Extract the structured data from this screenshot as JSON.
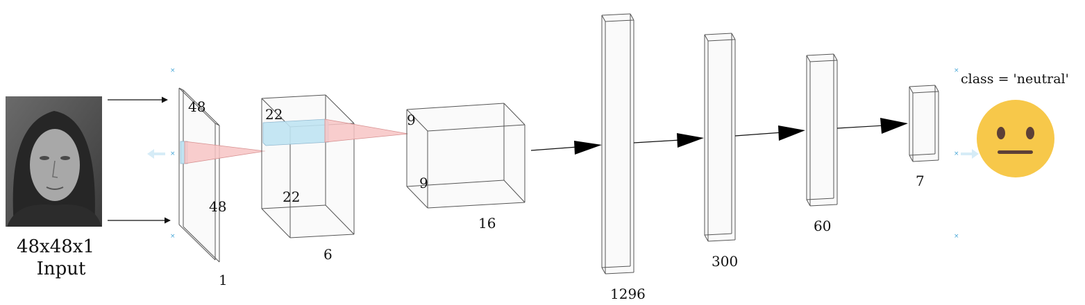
{
  "input": {
    "size_label": "48x48x1",
    "caption": "Input"
  },
  "conv1": {
    "height": "48",
    "width": "48",
    "depth": "1"
  },
  "conv2": {
    "height": "22",
    "width": "22",
    "depth": "6"
  },
  "conv3": {
    "height": "9",
    "width": "9",
    "depth": "16"
  },
  "dense": [
    "1296",
    "300",
    "60",
    "7"
  ],
  "output": {
    "class_label": "class = 'neutral'",
    "emoji": "neutral-face"
  },
  "colors": {
    "kernel_blue": "#bfe3f2",
    "kernel_red": "#f7c4c4",
    "emoji_yellow": "#f7c84a",
    "emoji_feature": "#5d4037",
    "marker_cyan": "#4aa8d8"
  }
}
